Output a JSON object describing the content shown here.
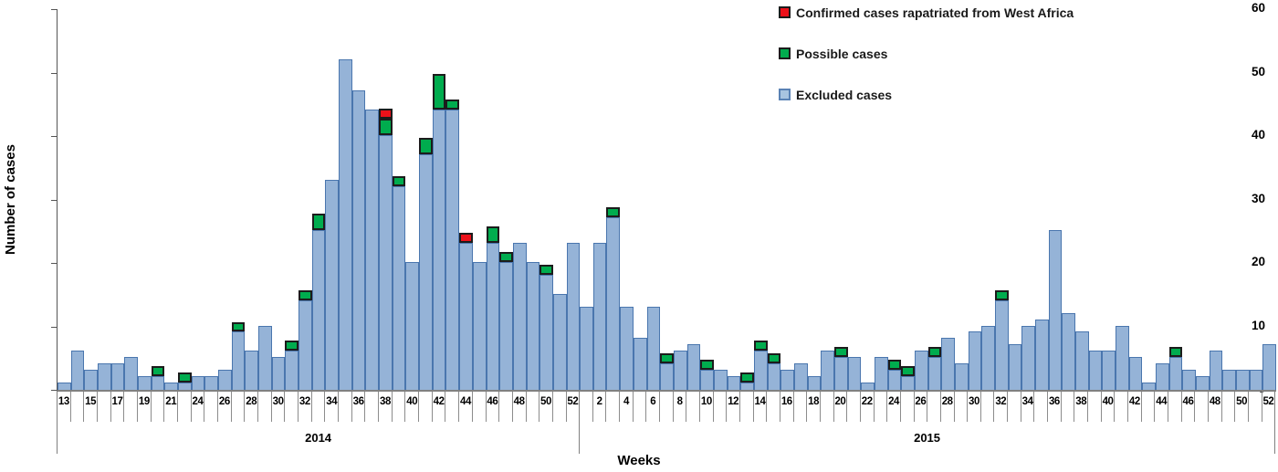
{
  "chart_data": {
    "type": "bar",
    "stacked": true,
    "xlabel": "Weeks",
    "ylabel": "Number of cases",
    "ylim": [
      0,
      60
    ],
    "yticks": [
      0,
      10,
      20,
      30,
      40,
      50,
      60
    ],
    "grid": false,
    "legend_position": "top-right",
    "legend": [
      {
        "key": "c",
        "label": "Confirmed cases rapatriated from West Africa",
        "color": "#EC111A"
      },
      {
        "key": "p",
        "label": "Possible cases",
        "color": "#00AC4E"
      },
      {
        "key": "e",
        "label": "Excluded cases",
        "color": "#95B3D7"
      }
    ],
    "series_meaning": {
      "e": "Excluded cases",
      "p": "Possible cases",
      "c": "Confirmed cases rapatriated from West Africa"
    },
    "stack_order_bottom_to_top": [
      "e",
      "p",
      "c"
    ],
    "years": [
      {
        "label": "2014",
        "bars": [
          {
            "week": "13",
            "label": "13",
            "e": 1,
            "p": 0,
            "c": 0
          },
          {
            "week": "14",
            "label": "",
            "e": 6,
            "p": 0,
            "c": 0
          },
          {
            "week": "15",
            "label": "15",
            "e": 3,
            "p": 0,
            "c": 0
          },
          {
            "week": "16",
            "label": "",
            "e": 4,
            "p": 0,
            "c": 0
          },
          {
            "week": "17",
            "label": "17",
            "e": 4,
            "p": 0,
            "c": 0
          },
          {
            "week": "18",
            "label": "",
            "e": 5,
            "p": 0,
            "c": 0
          },
          {
            "week": "19",
            "label": "19",
            "e": 2,
            "p": 0,
            "c": 0
          },
          {
            "week": "20",
            "label": "",
            "e": 2,
            "p": 1,
            "c": 0
          },
          {
            "week": "21",
            "label": "21",
            "e": 1,
            "p": 0,
            "c": 0
          },
          {
            "week": "22/23",
            "label": "",
            "e": 1,
            "p": 1,
            "c": 0
          },
          {
            "week": "24",
            "label": "24",
            "e": 2,
            "p": 0,
            "c": 0
          },
          {
            "week": "25",
            "label": "",
            "e": 2,
            "p": 0,
            "c": 0
          },
          {
            "week": "26",
            "label": "26",
            "e": 3,
            "p": 0,
            "c": 0
          },
          {
            "week": "27",
            "label": "",
            "e": 9,
            "p": 1,
            "c": 0
          },
          {
            "week": "28",
            "label": "28",
            "e": 6,
            "p": 0,
            "c": 0
          },
          {
            "week": "29",
            "label": "",
            "e": 10,
            "p": 0,
            "c": 0
          },
          {
            "week": "30",
            "label": "30",
            "e": 5,
            "p": 0,
            "c": 0
          },
          {
            "week": "31",
            "label": "",
            "e": 6,
            "p": 1,
            "c": 0
          },
          {
            "week": "32",
            "label": "32",
            "e": 14,
            "p": 1,
            "c": 0
          },
          {
            "week": "33",
            "label": "",
            "e": 25,
            "p": 2,
            "c": 0
          },
          {
            "week": "34",
            "label": "34",
            "e": 33,
            "p": 0,
            "c": 0
          },
          {
            "week": "35",
            "label": "",
            "e": 52,
            "p": 0,
            "c": 0
          },
          {
            "week": "36",
            "label": "36",
            "e": 47,
            "p": 0,
            "c": 0
          },
          {
            "week": "37",
            "label": "",
            "e": 44,
            "p": 0,
            "c": 0
          },
          {
            "week": "38",
            "label": "38",
            "e": 40,
            "p": 2,
            "c": 1
          },
          {
            "week": "39",
            "label": "",
            "e": 32,
            "p": 1,
            "c": 0
          },
          {
            "week": "40",
            "label": "40",
            "e": 20,
            "p": 0,
            "c": 0
          },
          {
            "week": "41",
            "label": "",
            "e": 37,
            "p": 2,
            "c": 0
          },
          {
            "week": "42",
            "label": "42",
            "e": 44,
            "p": 5,
            "c": 0
          },
          {
            "week": "43",
            "label": "",
            "e": 44,
            "p": 1,
            "c": 0
          },
          {
            "week": "44",
            "label": "44",
            "e": 23,
            "p": 0,
            "c": 1
          },
          {
            "week": "45",
            "label": "",
            "e": 20,
            "p": 0,
            "c": 0
          },
          {
            "week": "46",
            "label": "46",
            "e": 23,
            "p": 2,
            "c": 0
          },
          {
            "week": "47",
            "label": "",
            "e": 20,
            "p": 1,
            "c": 0
          },
          {
            "week": "48",
            "label": "48",
            "e": 23,
            "p": 0,
            "c": 0
          },
          {
            "week": "49",
            "label": "",
            "e": 20,
            "p": 0,
            "c": 0
          },
          {
            "week": "50",
            "label": "50",
            "e": 18,
            "p": 1,
            "c": 0
          },
          {
            "week": "51",
            "label": "",
            "e": 15,
            "p": 0,
            "c": 0
          },
          {
            "week": "52",
            "label": "52",
            "e": 23,
            "p": 0,
            "c": 0
          }
        ]
      },
      {
        "label": "2015",
        "bars": [
          {
            "week": "1",
            "label": "",
            "e": 13,
            "p": 0,
            "c": 0
          },
          {
            "week": "2",
            "label": "2",
            "e": 23,
            "p": 0,
            "c": 0
          },
          {
            "week": "3",
            "label": "",
            "e": 27,
            "p": 1,
            "c": 0
          },
          {
            "week": "4",
            "label": "4",
            "e": 13,
            "p": 0,
            "c": 0
          },
          {
            "week": "5",
            "label": "",
            "e": 8,
            "p": 0,
            "c": 0
          },
          {
            "week": "6",
            "label": "6",
            "e": 13,
            "p": 0,
            "c": 0
          },
          {
            "week": "7",
            "label": "",
            "e": 4,
            "p": 1,
            "c": 0
          },
          {
            "week": "8",
            "label": "8",
            "e": 6,
            "p": 0,
            "c": 0
          },
          {
            "week": "9",
            "label": "",
            "e": 7,
            "p": 0,
            "c": 0
          },
          {
            "week": "10",
            "label": "10",
            "e": 3,
            "p": 1,
            "c": 0
          },
          {
            "week": "11",
            "label": "",
            "e": 3,
            "p": 0,
            "c": 0
          },
          {
            "week": "12",
            "label": "12",
            "e": 2,
            "p": 0,
            "c": 0
          },
          {
            "week": "13",
            "label": "",
            "e": 1,
            "p": 1,
            "c": 0
          },
          {
            "week": "14",
            "label": "14",
            "e": 6,
            "p": 1,
            "c": 0
          },
          {
            "week": "15",
            "label": "",
            "e": 4,
            "p": 1,
            "c": 0
          },
          {
            "week": "16",
            "label": "16",
            "e": 3,
            "p": 0,
            "c": 0
          },
          {
            "week": "17",
            "label": "",
            "e": 4,
            "p": 0,
            "c": 0
          },
          {
            "week": "18",
            "label": "18",
            "e": 2,
            "p": 0,
            "c": 0
          },
          {
            "week": "19",
            "label": "",
            "e": 6,
            "p": 0,
            "c": 0
          },
          {
            "week": "20",
            "label": "20",
            "e": 5,
            "p": 1,
            "c": 0
          },
          {
            "week": "21",
            "label": "",
            "e": 5,
            "p": 0,
            "c": 0
          },
          {
            "week": "22",
            "label": "22",
            "e": 1,
            "p": 0,
            "c": 0
          },
          {
            "week": "23",
            "label": "",
            "e": 5,
            "p": 0,
            "c": 0
          },
          {
            "week": "24",
            "label": "24",
            "e": 3,
            "p": 1,
            "c": 0
          },
          {
            "week": "25",
            "label": "",
            "e": 2,
            "p": 1,
            "c": 0
          },
          {
            "week": "26",
            "label": "26",
            "e": 6,
            "p": 0,
            "c": 0
          },
          {
            "week": "27",
            "label": "",
            "e": 5,
            "p": 1,
            "c": 0
          },
          {
            "week": "28",
            "label": "28",
            "e": 8,
            "p": 0,
            "c": 0
          },
          {
            "week": "29",
            "label": "",
            "e": 4,
            "p": 0,
            "c": 0
          },
          {
            "week": "30",
            "label": "30",
            "e": 9,
            "p": 0,
            "c": 0
          },
          {
            "week": "31",
            "label": "",
            "e": 10,
            "p": 0,
            "c": 0
          },
          {
            "week": "32",
            "label": "32",
            "e": 14,
            "p": 1,
            "c": 0
          },
          {
            "week": "33",
            "label": "",
            "e": 7,
            "p": 0,
            "c": 0
          },
          {
            "week": "34",
            "label": "34",
            "e": 10,
            "p": 0,
            "c": 0
          },
          {
            "week": "35",
            "label": "",
            "e": 11,
            "p": 0,
            "c": 0
          },
          {
            "week": "36",
            "label": "36",
            "e": 25,
            "p": 0,
            "c": 0
          },
          {
            "week": "37",
            "label": "",
            "e": 12,
            "p": 0,
            "c": 0
          },
          {
            "week": "38",
            "label": "38",
            "e": 9,
            "p": 0,
            "c": 0
          },
          {
            "week": "39",
            "label": "",
            "e": 6,
            "p": 0,
            "c": 0
          },
          {
            "week": "40",
            "label": "40",
            "e": 6,
            "p": 0,
            "c": 0
          },
          {
            "week": "41",
            "label": "",
            "e": 10,
            "p": 0,
            "c": 0
          },
          {
            "week": "42",
            "label": "42",
            "e": 5,
            "p": 0,
            "c": 0
          },
          {
            "week": "43",
            "label": "",
            "e": 1,
            "p": 0,
            "c": 0
          },
          {
            "week": "44",
            "label": "44",
            "e": 4,
            "p": 0,
            "c": 0
          },
          {
            "week": "45",
            "label": "",
            "e": 5,
            "p": 1,
            "c": 0
          },
          {
            "week": "46",
            "label": "46",
            "e": 3,
            "p": 0,
            "c": 0
          },
          {
            "week": "47",
            "label": "",
            "e": 2,
            "p": 0,
            "c": 0
          },
          {
            "week": "48",
            "label": "48",
            "e": 6,
            "p": 0,
            "c": 0
          },
          {
            "week": "49",
            "label": "",
            "e": 3,
            "p": 0,
            "c": 0
          },
          {
            "week": "50",
            "label": "50",
            "e": 3,
            "p": 0,
            "c": 0
          },
          {
            "week": "51",
            "label": "",
            "e": 3,
            "p": 0,
            "c": 0
          },
          {
            "week": "52",
            "label": "52",
            "e": 7,
            "p": 0,
            "c": 0
          }
        ]
      }
    ]
  }
}
